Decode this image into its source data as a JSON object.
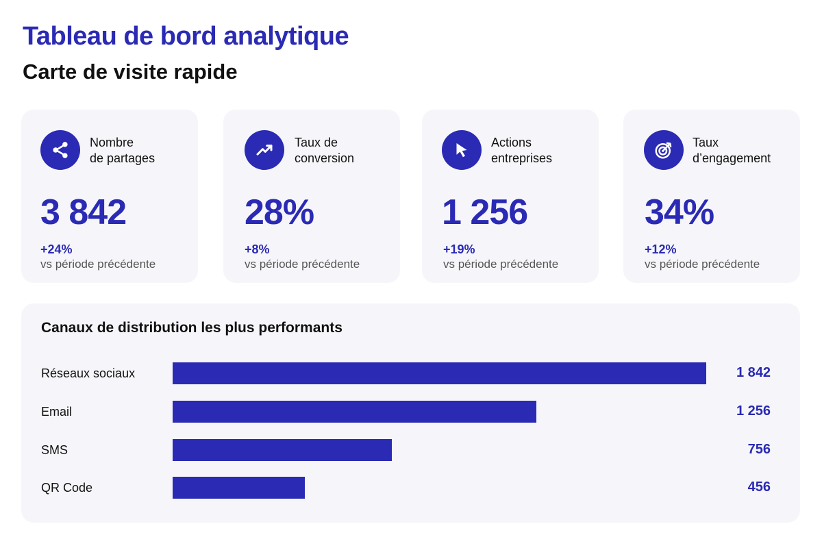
{
  "header": {
    "title": "Tableau de bord analytique",
    "subtitle": "Carte de visite rapide"
  },
  "colors": {
    "accent": "#2a2ab4",
    "card_background": "#f6f6fa",
    "text": "#111111",
    "muted": "#555555"
  },
  "kpis": [
    {
      "icon": "share-icon",
      "label_line1": "Nombre",
      "label_line2": "de partages",
      "value": "3 842",
      "change": "+24%",
      "compare": "vs période précédente"
    },
    {
      "icon": "trend-up-icon",
      "label_line1": "Taux de",
      "label_line2": "conversion",
      "value": "28%",
      "change": "+8%",
      "compare": "vs période précédente"
    },
    {
      "icon": "cursor-icon",
      "label_line1": "Actions",
      "label_line2": "entreprises",
      "value": "1 256",
      "change": "+19%",
      "compare": "vs période précédente"
    },
    {
      "icon": "target-icon",
      "label_line1": "Taux",
      "label_line2": "d’engagement",
      "value": "34%",
      "change": "+12%",
      "compare": "vs période précédente"
    }
  ],
  "channels": {
    "title": "Canaux de distribution les plus performants",
    "items": [
      {
        "name": "Réseaux sociaux",
        "value": 1842,
        "display": "1 842"
      },
      {
        "name": "Email",
        "value": 1256,
        "display": "1 256"
      },
      {
        "name": "SMS",
        "value": 756,
        "display": "756"
      },
      {
        "name": "QR Code",
        "value": 456,
        "display": "456"
      }
    ]
  }
}
